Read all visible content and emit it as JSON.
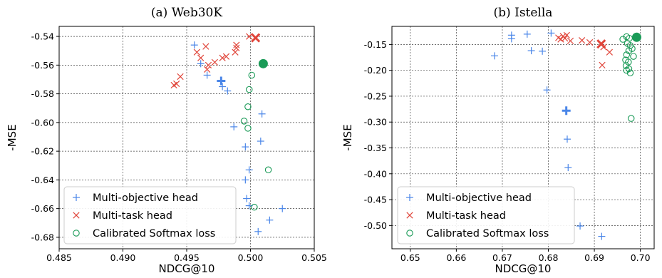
{
  "colors": {
    "multi_objective": "#4a86e8",
    "multi_task": "#e0453a",
    "calibrated": "#1a9a57"
  },
  "legend": {
    "multi_objective": "Multi-objective head",
    "multi_task": "Multi-task head",
    "calibrated": "Calibrated Softmax loss"
  },
  "chart_data": [
    {
      "type": "scatter",
      "title": "(a) Web30K",
      "xlabel": "NDCG@10",
      "ylabel": "-MSE",
      "xlim": [
        0.485,
        0.505
      ],
      "ylim": [
        -0.688,
        -0.533
      ],
      "xticks": [
        "0.485",
        "0.490",
        "0.495",
        "0.500",
        "0.505"
      ],
      "xtick_values": [
        0.485,
        0.49,
        0.495,
        0.5,
        0.505
      ],
      "yticks": [
        "-0.54",
        "-0.56",
        "-0.58",
        "-0.60",
        "-0.62",
        "-0.64",
        "-0.66",
        "-0.68"
      ],
      "ytick_values": [
        -0.54,
        -0.56,
        -0.58,
        -0.6,
        -0.62,
        -0.64,
        -0.66,
        -0.68
      ],
      "grid": true,
      "legend_position": "lower-left",
      "series": [
        {
          "name": "Multi-objective head",
          "marker": "plus",
          "points": [
            [
              0.4956,
              -0.546
            ],
            [
              0.4961,
              -0.559
            ],
            [
              0.4966,
              -0.567
            ],
            [
              0.4978,
              -0.575
            ],
            [
              0.4982,
              -0.578
            ],
            [
              0.4987,
              -0.603
            ],
            [
              0.4996,
              -0.617
            ],
            [
              0.4999,
              -0.633
            ],
            [
              0.4996,
              -0.64
            ],
            [
              0.4997,
              -0.653
            ],
            [
              0.4999,
              -0.658
            ],
            [
              0.5009,
              -0.594
            ],
            [
              0.5008,
              -0.613
            ],
            [
              0.5025,
              -0.66
            ],
            [
              0.5015,
              -0.668
            ],
            [
              0.5006,
              -0.676
            ]
          ],
          "highlight": [
            0.4977,
            -0.571
          ]
        },
        {
          "name": "Multi-task head",
          "marker": "x",
          "points": [
            [
              0.494,
              -0.574
            ],
            [
              0.4942,
              -0.573
            ],
            [
              0.4945,
              -0.568
            ],
            [
              0.4958,
              -0.551
            ],
            [
              0.4961,
              -0.555
            ],
            [
              0.4965,
              -0.547
            ],
            [
              0.4966,
              -0.563
            ],
            [
              0.4967,
              -0.56
            ],
            [
              0.4972,
              -0.558
            ],
            [
              0.4978,
              -0.555
            ],
            [
              0.4981,
              -0.554
            ],
            [
              0.4988,
              -0.551
            ],
            [
              0.4989,
              -0.548
            ],
            [
              0.4989,
              -0.546
            ],
            [
              0.4999,
              -0.54
            ]
          ],
          "highlight": [
            0.5004,
            -0.541
          ]
        },
        {
          "name": "Calibrated Softmax loss",
          "marker": "circle",
          "points": [
            [
              0.5001,
              -0.567
            ],
            [
              0.4999,
              -0.577
            ],
            [
              0.4998,
              -0.589
            ],
            [
              0.4995,
              -0.599
            ],
            [
              0.4998,
              -0.604
            ],
            [
              0.5014,
              -0.633
            ],
            [
              0.5003,
              -0.659
            ]
          ],
          "highlight": [
            0.501,
            -0.559
          ]
        }
      ]
    },
    {
      "type": "scatter",
      "title": "(b) Istella",
      "xlabel": "NDCG@10",
      "ylabel": "-MSE",
      "xlim": [
        0.646,
        0.703
      ],
      "ylim": [
        -0.545,
        -0.115
      ],
      "xticks": [
        "0.65",
        "0.66",
        "0.67",
        "0.68",
        "0.69",
        "0.70"
      ],
      "xtick_values": [
        0.65,
        0.66,
        0.67,
        0.68,
        0.69,
        0.7
      ],
      "yticks": [
        "-0.15",
        "-0.20",
        "-0.25",
        "-0.30",
        "-0.35",
        "-0.40",
        "-0.45",
        "-0.50"
      ],
      "ytick_values": [
        -0.15,
        -0.2,
        -0.25,
        -0.3,
        -0.35,
        -0.4,
        -0.45,
        -0.5
      ],
      "grid": true,
      "legend_position": "lower-left",
      "series": [
        {
          "name": "Multi-objective head",
          "marker": "plus",
          "points": [
            [
              0.6683,
              -0.172
            ],
            [
              0.672,
              -0.132
            ],
            [
              0.672,
              -0.139
            ],
            [
              0.6754,
              -0.13
            ],
            [
              0.6763,
              -0.162
            ],
            [
              0.6787,
              -0.163
            ],
            [
              0.6797,
              -0.238
            ],
            [
              0.6806,
              -0.128
            ],
            [
              0.6841,
              -0.333
            ],
            [
              0.6843,
              -0.388
            ],
            [
              0.6869,
              -0.501
            ],
            [
              0.6916,
              -0.521
            ]
          ],
          "highlight": [
            0.6839,
            -0.278
          ]
        },
        {
          "name": "Multi-task head",
          "marker": "x",
          "points": [
            [
              0.6822,
              -0.137
            ],
            [
              0.6827,
              -0.14
            ],
            [
              0.6832,
              -0.134
            ],
            [
              0.6836,
              -0.138
            ],
            [
              0.684,
              -0.132
            ],
            [
              0.6848,
              -0.143
            ],
            [
              0.6873,
              -0.142
            ],
            [
              0.689,
              -0.146
            ],
            [
              0.692,
              -0.155
            ],
            [
              0.6933,
              -0.165
            ],
            [
              0.6917,
              -0.19
            ]
          ],
          "highlight": [
            0.6915,
            -0.149
          ]
        },
        {
          "name": "Calibrated Softmax loss",
          "marker": "circle",
          "points": [
            [
              0.6962,
              -0.14
            ],
            [
              0.697,
              -0.135
            ],
            [
              0.6976,
              -0.138
            ],
            [
              0.6972,
              -0.148
            ],
            [
              0.6978,
              -0.152
            ],
            [
              0.6975,
              -0.162
            ],
            [
              0.6982,
              -0.158
            ],
            [
              0.697,
              -0.17
            ],
            [
              0.6985,
              -0.173
            ],
            [
              0.6968,
              -0.18
            ],
            [
              0.6974,
              -0.184
            ],
            [
              0.6969,
              -0.191
            ],
            [
              0.6975,
              -0.197
            ],
            [
              0.697,
              -0.2
            ],
            [
              0.6978,
              -0.205
            ],
            [
              0.698,
              -0.293
            ]
          ],
          "highlight": [
            0.6992,
            -0.136
          ]
        }
      ]
    }
  ]
}
